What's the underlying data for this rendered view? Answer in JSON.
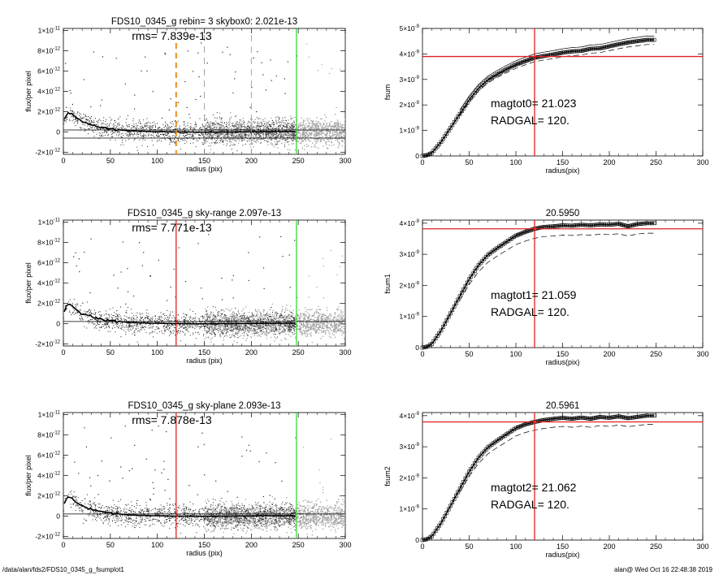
{
  "footer": {
    "path": "/data/alan/fds2/FDS10_0345_g_fsumplot1",
    "stamp": "alan@  Wed Oct 16 22:48:38 2019"
  },
  "colors": {
    "axis": "#000000",
    "points_dark": "#222222",
    "points_light": "#a0a0a0",
    "profile": "#000000",
    "orange_marker": "#f08c1e",
    "red_marker": "#e02020",
    "green_marker": "#33dd33",
    "gray_marker": "#909090"
  },
  "chart_data": [
    {
      "id": "profile-1",
      "type": "scatter",
      "title": "FDS10_0345_g rebin= 3    skybox0:  2.021e-13",
      "annotation": "rms= 7.839e-13",
      "xlabel": "radius (pix)",
      "ylabel": "flux/per pixel",
      "xlim": [
        0,
        300
      ],
      "ylim": [
        -2.2e-12,
        1.02e-11
      ],
      "xticks": [
        0,
        50,
        100,
        150,
        200,
        250,
        300
      ],
      "yticks": [
        {
          "value": 1e-11,
          "mant": "1×10",
          "exp": "-11"
        },
        {
          "value": 8e-12,
          "mant": "8×10",
          "exp": "-12"
        },
        {
          "value": 6e-12,
          "mant": "6×10",
          "exp": "-12"
        },
        {
          "value": 4e-12,
          "mant": "4×10",
          "exp": "-12"
        },
        {
          "value": 2e-12,
          "mant": "2×10",
          "exp": "-12"
        },
        {
          "value": 0,
          "mant": "0",
          "exp": ""
        },
        {
          "value": -2e-12,
          "mant": "-2×10",
          "exp": "-12"
        }
      ],
      "reference_lines": [
        2.021e-13,
        -6e-13
      ],
      "profile": [
        [
          0,
          1e-12
        ],
        [
          3,
          1.7e-12
        ],
        [
          6,
          1.9e-12
        ],
        [
          10,
          1.7e-12
        ],
        [
          15,
          1.3e-12
        ],
        [
          20,
          1e-12
        ],
        [
          30,
          7e-13
        ],
        [
          40,
          4.5e-13
        ],
        [
          50,
          3e-13
        ],
        [
          60,
          2e-13
        ],
        [
          70,
          1.2e-13
        ],
        [
          90,
          5e-14
        ],
        [
          120,
          0.0
        ],
        [
          150,
          -2e-14
        ],
        [
          200,
          2e-14
        ],
        [
          248,
          5e-14
        ]
      ],
      "markers": [
        {
          "x": 120,
          "color": "#f08c1e",
          "style": "dashed-bold"
        },
        {
          "x": 150,
          "color": "#909090",
          "style": "dashed"
        },
        {
          "x": 200,
          "color": "#909090",
          "style": "dashed"
        },
        {
          "x": 248,
          "color": "#33dd33",
          "style": "solid"
        }
      ]
    },
    {
      "id": "fsum-1",
      "type": "line",
      "title": "",
      "annotations": [
        "magtot0=  21.023",
        "RADGAL=    120."
      ],
      "xlabel": "radius(pix)",
      "ylabel": "fsum",
      "xlim": [
        0,
        300
      ],
      "ylim": [
        0,
        5e-09
      ],
      "xticks": [
        0,
        50,
        100,
        150,
        200,
        250,
        300
      ],
      "yticks": [
        {
          "value": 0,
          "mant": "0",
          "exp": ""
        },
        {
          "value": 1e-09,
          "mant": "1×10",
          "exp": "-9"
        },
        {
          "value": 2e-09,
          "mant": "2×10",
          "exp": "-9"
        },
        {
          "value": 3e-09,
          "mant": "3×10",
          "exp": "-9"
        },
        {
          "value": 4e-09,
          "mant": "4×10",
          "exp": "-9"
        },
        {
          "value": 5e-09,
          "mant": "5×10",
          "exp": "-9"
        }
      ],
      "curve": [
        [
          0,
          0
        ],
        [
          5,
          3e-11
        ],
        [
          10,
          1.2e-10
        ],
        [
          20,
          5.5e-10
        ],
        [
          30,
          1.1e-09
        ],
        [
          40,
          1.65e-09
        ],
        [
          50,
          2.2e-09
        ],
        [
          60,
          2.65e-09
        ],
        [
          70,
          2.98e-09
        ],
        [
          80,
          3.2e-09
        ],
        [
          90,
          3.4e-09
        ],
        [
          100,
          3.58e-09
        ],
        [
          110,
          3.72e-09
        ],
        [
          120,
          3.85e-09
        ],
        [
          130,
          3.92e-09
        ],
        [
          140,
          3.98e-09
        ],
        [
          150,
          4.05e-09
        ],
        [
          160,
          4.1e-09
        ],
        [
          170,
          4.12e-09
        ],
        [
          180,
          4.2e-09
        ],
        [
          190,
          4.22e-09
        ],
        [
          200,
          4.3e-09
        ],
        [
          210,
          4.38e-09
        ],
        [
          220,
          4.45e-09
        ],
        [
          230,
          4.5e-09
        ],
        [
          240,
          4.55e-09
        ],
        [
          248,
          4.55e-09
        ]
      ],
      "upper_offset": 1.5e-10,
      "lower_scale": 0.96,
      "last_points_square": true,
      "hline": 3.9e-09,
      "vline": 120
    },
    {
      "id": "profile-2",
      "type": "scatter",
      "title": "FDS10_0345_g sky-range  2.097e-13",
      "annotation": "rms= 7.771e-13",
      "xlabel": "radius (pix)",
      "ylabel": "flux/per pixel",
      "xlim": [
        0,
        300
      ],
      "ylim": [
        -2.2e-12,
        1.02e-11
      ],
      "xticks": [
        0,
        50,
        100,
        150,
        200,
        250,
        300
      ],
      "yticks": [
        {
          "value": 1e-11,
          "mant": "1×10",
          "exp": "-11"
        },
        {
          "value": 8e-12,
          "mant": "8×10",
          "exp": "-12"
        },
        {
          "value": 6e-12,
          "mant": "6×10",
          "exp": "-12"
        },
        {
          "value": 4e-12,
          "mant": "4×10",
          "exp": "-12"
        },
        {
          "value": 2e-12,
          "mant": "2×10",
          "exp": "-12"
        },
        {
          "value": 0,
          "mant": "0",
          "exp": ""
        },
        {
          "value": -2e-12,
          "mant": "-2×10",
          "exp": "-12"
        }
      ],
      "reference_lines": [
        2.097e-13
      ],
      "profile": [
        [
          0,
          1e-12
        ],
        [
          3,
          1.7e-12
        ],
        [
          6,
          1.9e-12
        ],
        [
          10,
          1.7e-12
        ],
        [
          15,
          1.3e-12
        ],
        [
          20,
          1e-12
        ],
        [
          30,
          7e-13
        ],
        [
          40,
          4.5e-13
        ],
        [
          50,
          3e-13
        ],
        [
          60,
          2e-13
        ],
        [
          70,
          1.2e-13
        ],
        [
          90,
          5e-14
        ],
        [
          120,
          0.0
        ],
        [
          150,
          -2e-14
        ],
        [
          200,
          2e-14
        ],
        [
          248,
          5e-14
        ]
      ],
      "markers": [
        {
          "x": 120,
          "color": "#e02020",
          "style": "solid"
        },
        {
          "x": 248,
          "color": "#33dd33",
          "style": "solid"
        }
      ]
    },
    {
      "id": "fsum-2",
      "type": "line",
      "title": "20.5950",
      "annotations": [
        "magtot1=  21.059",
        "RADGAL=    120."
      ],
      "xlabel": "radius(pix)",
      "ylabel": "fsum1",
      "xlim": [
        0,
        300
      ],
      "ylim": [
        0,
        4.1e-09
      ],
      "xticks": [
        0,
        50,
        100,
        150,
        200,
        250,
        300
      ],
      "yticks": [
        {
          "value": 0,
          "mant": "0",
          "exp": ""
        },
        {
          "value": 1e-09,
          "mant": "1×10",
          "exp": "-9"
        },
        {
          "value": 2e-09,
          "mant": "2×10",
          "exp": "-9"
        },
        {
          "value": 3e-09,
          "mant": "3×10",
          "exp": "-9"
        },
        {
          "value": 4e-09,
          "mant": "4×10",
          "exp": "-9"
        }
      ],
      "curve": [
        [
          0,
          0
        ],
        [
          5,
          3e-11
        ],
        [
          10,
          1.2e-10
        ],
        [
          20,
          5.5e-10
        ],
        [
          30,
          1.1e-09
        ],
        [
          40,
          1.65e-09
        ],
        [
          50,
          2.2e-09
        ],
        [
          60,
          2.65e-09
        ],
        [
          70,
          2.98e-09
        ],
        [
          80,
          3.2e-09
        ],
        [
          90,
          3.4e-09
        ],
        [
          100,
          3.6e-09
        ],
        [
          110,
          3.72e-09
        ],
        [
          120,
          3.82e-09
        ],
        [
          130,
          3.88e-09
        ],
        [
          140,
          3.9e-09
        ],
        [
          150,
          3.93e-09
        ],
        [
          160,
          3.92e-09
        ],
        [
          170,
          3.95e-09
        ],
        [
          180,
          3.93e-09
        ],
        [
          190,
          3.96e-09
        ],
        [
          200,
          3.95e-09
        ],
        [
          210,
          3.98e-09
        ],
        [
          220,
          3.9e-09
        ],
        [
          230,
          3.97e-09
        ],
        [
          240,
          4e-09
        ],
        [
          248,
          4e-09
        ]
      ],
      "upper_offset": 0.0,
      "lower_scale": 0.92,
      "last_points_square": false,
      "hline": 3.82e-09,
      "vline": 120
    },
    {
      "id": "profile-3",
      "type": "scatter",
      "title": "FDS10_0345_g sky-plane  2.093e-13",
      "annotation": "rms= 7.878e-13",
      "xlabel": "radius (pix)",
      "ylabel": "flux/per pixel",
      "xlim": [
        0,
        300
      ],
      "ylim": [
        -2.2e-12,
        1.02e-11
      ],
      "xticks": [
        0,
        50,
        100,
        150,
        200,
        250,
        300
      ],
      "yticks": [
        {
          "value": 1e-11,
          "mant": "1×10",
          "exp": "-11"
        },
        {
          "value": 8e-12,
          "mant": "8×10",
          "exp": "-12"
        },
        {
          "value": 6e-12,
          "mant": "6×10",
          "exp": "-12"
        },
        {
          "value": 4e-12,
          "mant": "4×10",
          "exp": "-12"
        },
        {
          "value": 2e-12,
          "mant": "2×10",
          "exp": "-12"
        },
        {
          "value": 0,
          "mant": "0",
          "exp": ""
        },
        {
          "value": -2e-12,
          "mant": "-2×10",
          "exp": "-12"
        }
      ],
      "reference_lines": [
        2.093e-13
      ],
      "profile": [
        [
          0,
          1e-12
        ],
        [
          3,
          1.7e-12
        ],
        [
          6,
          1.9e-12
        ],
        [
          10,
          1.7e-12
        ],
        [
          15,
          1.3e-12
        ],
        [
          20,
          1e-12
        ],
        [
          30,
          7e-13
        ],
        [
          40,
          4.5e-13
        ],
        [
          50,
          3e-13
        ],
        [
          60,
          2e-13
        ],
        [
          70,
          1.2e-13
        ],
        [
          90,
          5e-14
        ],
        [
          120,
          0.0
        ],
        [
          150,
          -2e-14
        ],
        [
          200,
          2e-14
        ],
        [
          248,
          5e-14
        ]
      ],
      "markers": [
        {
          "x": 120,
          "color": "#e02020",
          "style": "solid"
        },
        {
          "x": 248,
          "color": "#33dd33",
          "style": "solid"
        }
      ]
    },
    {
      "id": "fsum-3",
      "type": "line",
      "title": "20.5961",
      "annotations": [
        "magtot2=  21.062",
        "RADGAL=    120."
      ],
      "xlabel": "radius(pix)",
      "ylabel": "fsum2",
      "xlim": [
        0,
        300
      ],
      "ylim": [
        0,
        4.1e-09
      ],
      "xticks": [
        0,
        50,
        100,
        150,
        200,
        250,
        300
      ],
      "yticks": [
        {
          "value": 0,
          "mant": "0",
          "exp": ""
        },
        {
          "value": 1e-09,
          "mant": "1×10",
          "exp": "-9"
        },
        {
          "value": 2e-09,
          "mant": "2×10",
          "exp": "-9"
        },
        {
          "value": 3e-09,
          "mant": "3×10",
          "exp": "-9"
        },
        {
          "value": 4e-09,
          "mant": "4×10",
          "exp": "-9"
        }
      ],
      "curve": [
        [
          0,
          0
        ],
        [
          5,
          3e-11
        ],
        [
          10,
          1.2e-10
        ],
        [
          20,
          5.5e-10
        ],
        [
          30,
          1.1e-09
        ],
        [
          40,
          1.65e-09
        ],
        [
          50,
          2.2e-09
        ],
        [
          60,
          2.65e-09
        ],
        [
          70,
          2.98e-09
        ],
        [
          80,
          3.2e-09
        ],
        [
          90,
          3.4e-09
        ],
        [
          100,
          3.6e-09
        ],
        [
          110,
          3.72e-09
        ],
        [
          120,
          3.8e-09
        ],
        [
          130,
          3.86e-09
        ],
        [
          140,
          3.9e-09
        ],
        [
          150,
          3.93e-09
        ],
        [
          160,
          3.9e-09
        ],
        [
          170,
          3.94e-09
        ],
        [
          180,
          3.9e-09
        ],
        [
          190,
          3.96e-09
        ],
        [
          200,
          3.93e-09
        ],
        [
          210,
          3.98e-09
        ],
        [
          220,
          3.92e-09
        ],
        [
          230,
          3.96e-09
        ],
        [
          240,
          4e-09
        ],
        [
          248,
          4e-09
        ]
      ],
      "upper_offset": 0.0,
      "lower_scale": 0.93,
      "last_points_square": false,
      "hline": 3.8e-09,
      "vline": 120
    }
  ]
}
